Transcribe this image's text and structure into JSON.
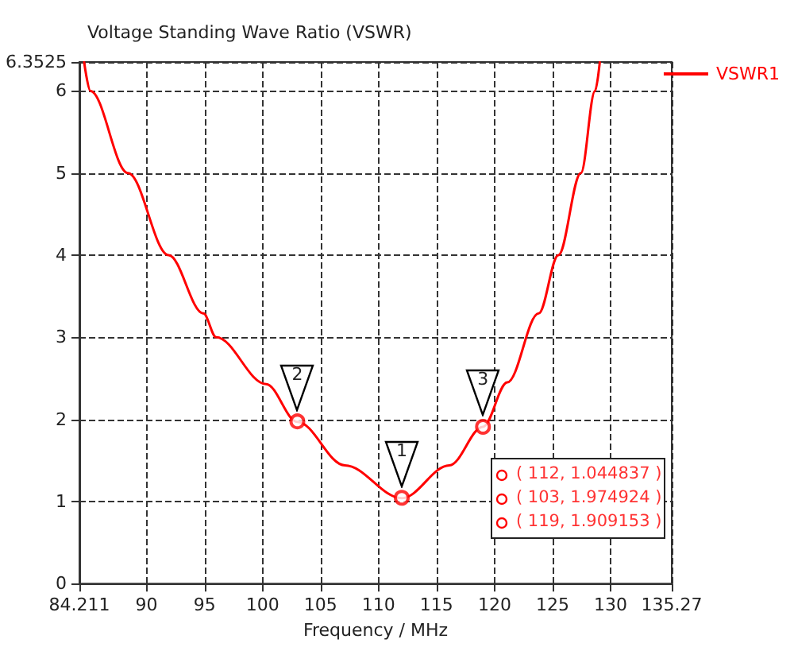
{
  "chart_data": {
    "type": "line",
    "title": "Voltage Standing Wave Ratio (VSWR)",
    "xlabel": "Frequency / MHz",
    "xlim": [
      84.211,
      135.27
    ],
    "xticks": [
      84.211,
      90,
      95,
      100,
      105,
      110,
      115,
      120,
      125,
      130,
      135.27
    ],
    "ylim": [
      0,
      6.3525
    ],
    "yticks": [
      0,
      1,
      2,
      3,
      4,
      5,
      6,
      6.3525
    ],
    "grid": true,
    "legend": "top right",
    "line_style": "solid",
    "marker": "none",
    "series": [
      {
        "name": "VSWR1",
        "color": "#ff0000",
        "x": [
          84.62,
          85.16,
          88.4,
          91.9,
          94.9,
          96.0,
          100.3,
          103,
          107.1,
          112,
          116.1,
          119,
          121.1,
          123.8,
          125.5,
          127.44,
          128.66,
          129.07
        ],
        "values": [
          6.35,
          6,
          5,
          4,
          3.29,
          3.0,
          2.43,
          1.97,
          1.44,
          1.04,
          1.44,
          1.91,
          2.45,
          3.29,
          4,
          5,
          6,
          6.35
        ]
      },
      {
        "type": "scatter",
        "color": "#ff0000",
        "marker": "circle",
        "x": [
          112,
          103,
          119
        ],
        "values": [
          1.044837,
          1.974924,
          1.909153
        ]
      }
    ],
    "annotations": [
      {
        "text": "1",
        "x": 112,
        "y": 1.044837
      },
      {
        "text": "2",
        "x": 103,
        "y": 1.974924
      },
      {
        "text": "3",
        "x": 119,
        "y": 1.909153
      },
      "( 112, 1.044837 )",
      "( 103, 1.974924 )",
      "( 119, 1.909153 )"
    ]
  }
}
